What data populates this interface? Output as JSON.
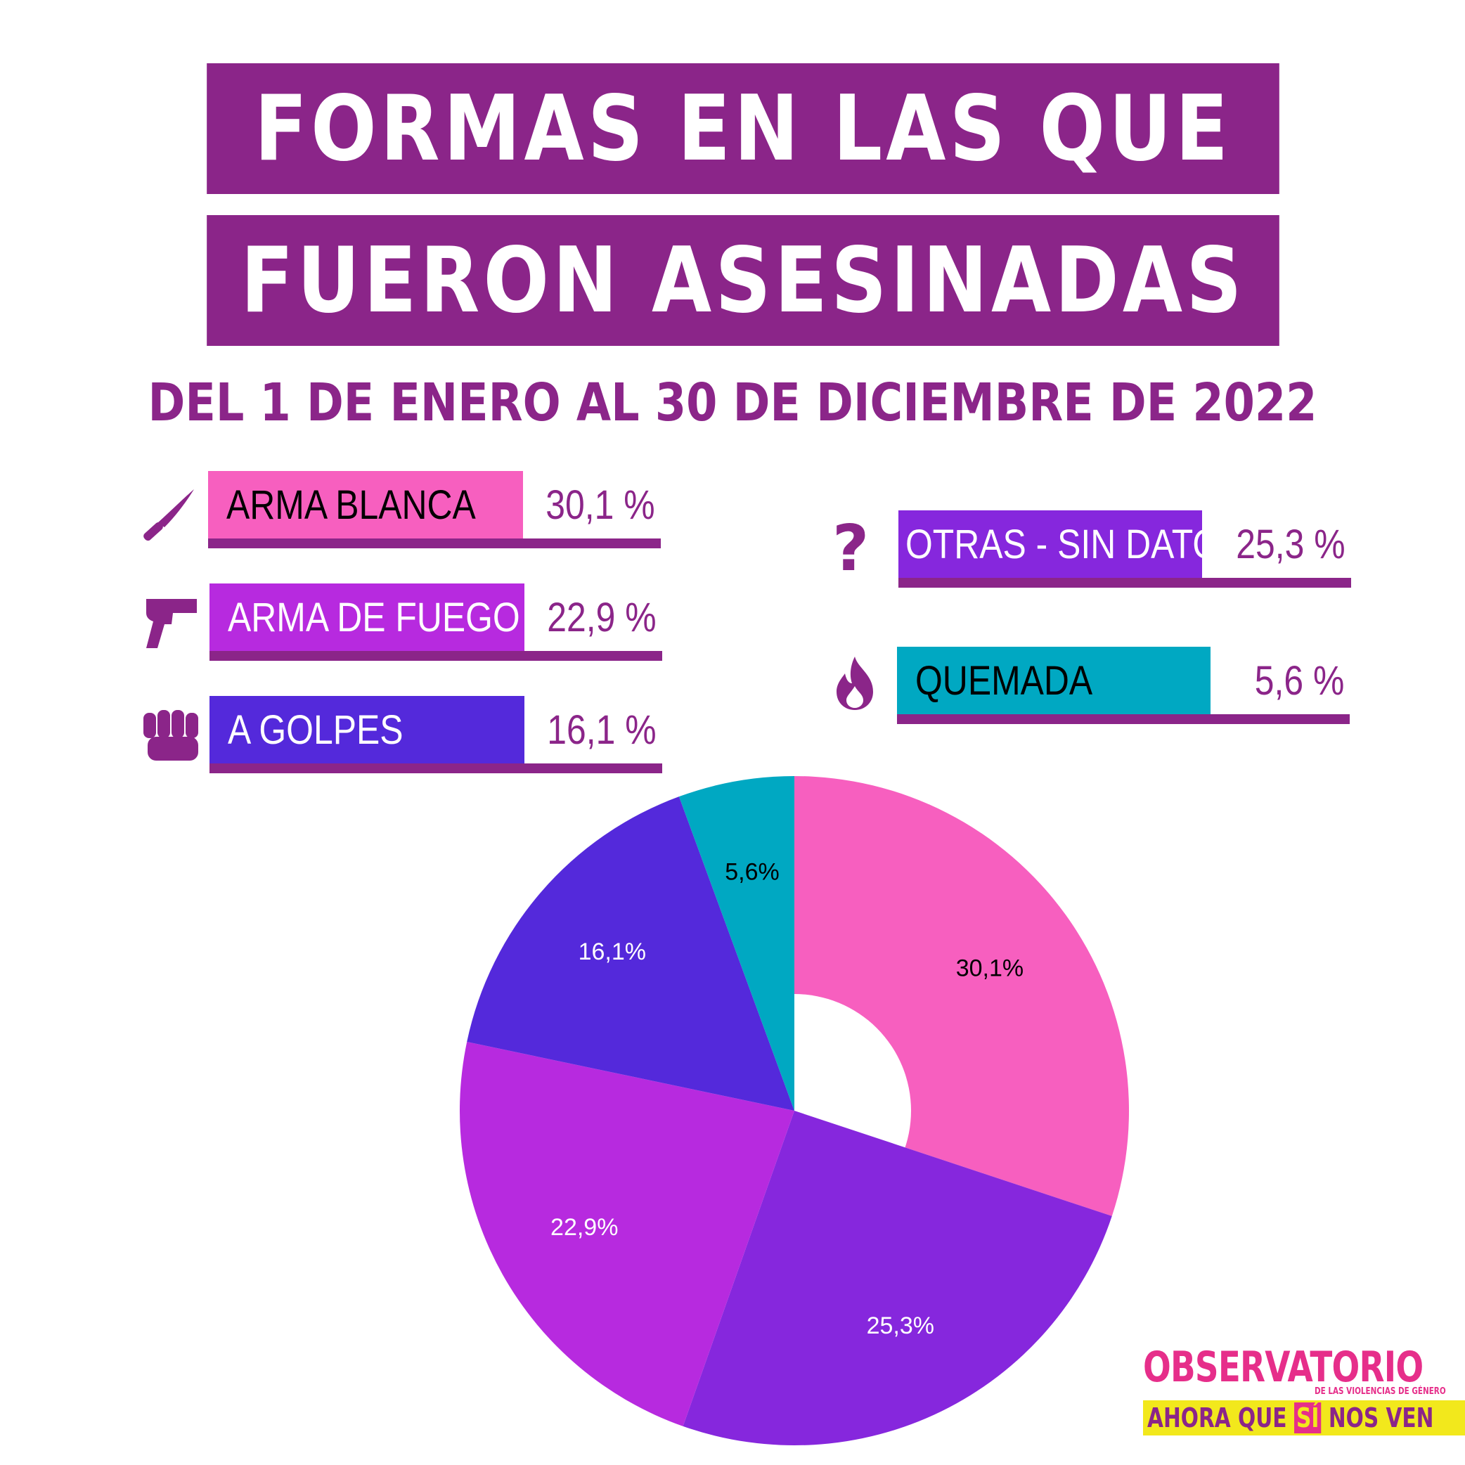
{
  "title_line1": "FORMAS EN LAS QUE",
  "title_line2": "FUERON ASESINADAS",
  "subtitle": "DEL 1 DE ENERO AL 30 DE DICIEMBRE DE 2022",
  "legend": [
    {
      "label": "ARMA BLANCA",
      "value": "30,1 %",
      "icon": "knife-icon"
    },
    {
      "label": "ARMA DE FUEGO",
      "value": "22,9 %",
      "icon": "gun-icon"
    },
    {
      "label": "A GOLPES",
      "value": "16,1 %",
      "icon": "fist-icon"
    },
    {
      "label": "OTRAS - SIN DATOS",
      "value": "25,3 %",
      "icon": "question-icon"
    },
    {
      "label": "QUEMADA",
      "value": "5,6 %",
      "icon": "fire-icon"
    }
  ],
  "chart_data": {
    "type": "pie",
    "donut": true,
    "categories": [
      "ARMA BLANCA",
      "OTRAS - SIN DATOS",
      "ARMA DE FUEGO",
      "A GOLPES",
      "QUEMADA"
    ],
    "values": [
      30.1,
      25.3,
      22.9,
      16.1,
      5.6
    ],
    "labels": [
      "30,1%",
      "25,3%",
      "22,9%",
      "16,1%",
      "5,6%"
    ],
    "colors": [
      "#f75fbf",
      "#8627dd",
      "#b72adf",
      "#5429db",
      "#00a8c2"
    ],
    "label_colors": [
      "#000000",
      "#ffffff",
      "#ffffff",
      "#ffffff",
      "#000000"
    ]
  },
  "logo": {
    "top": "OBSERVATORIO",
    "sub": "DE LAS VIOLENCIAS DE GÉNERO",
    "bottom_pre": "AHORA QUE",
    "bottom_si": "SÍ",
    "bottom_post": "NOS VEN"
  },
  "colors": {
    "brand": "#8b2589",
    "pink": "#f75fbf",
    "magenta": "#b72adf",
    "indigo": "#5429db",
    "violet": "#8627dd",
    "teal": "#00a8c2"
  }
}
